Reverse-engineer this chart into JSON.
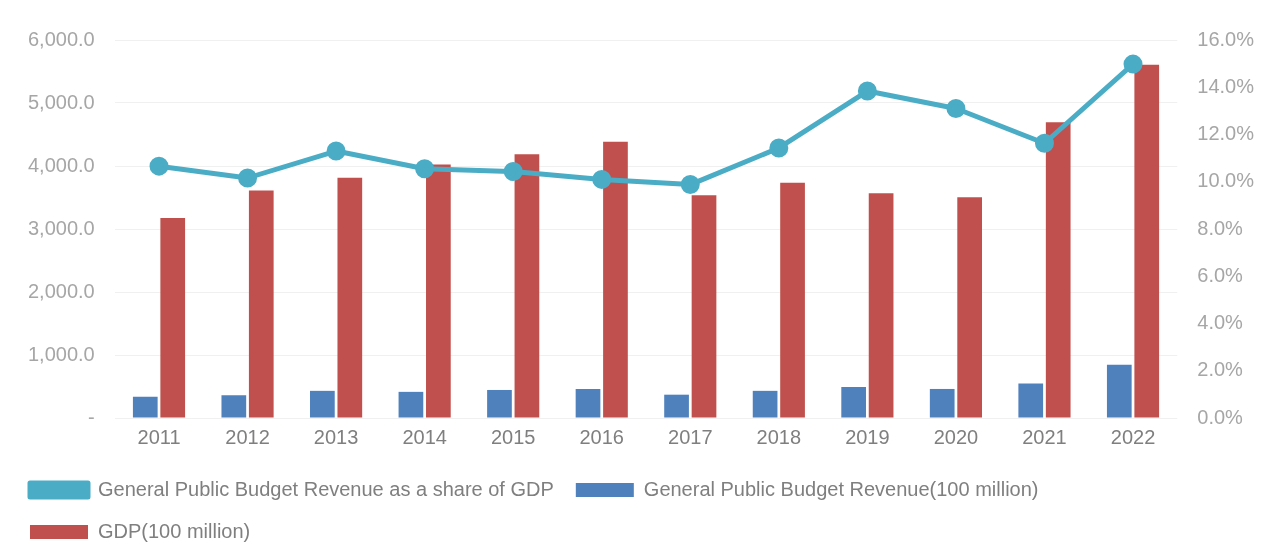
{
  "chart_data": {
    "type": "bar",
    "categories": [
      "2011",
      "2012",
      "2013",
      "2014",
      "2015",
      "2016",
      "2017",
      "2018",
      "2019",
      "2020",
      "2021",
      "2022"
    ],
    "series": [
      {
        "name": "General Public Budget Revenue(100 million)",
        "color": "#4f81bd",
        "values": [
          338,
          360,
          431,
          415,
          445,
          460,
          370,
          431,
          492,
          461,
          548,
          846
        ]
      },
      {
        "name": "GDP(100 million)",
        "color": "#c0504d",
        "values": [
          3173,
          3613,
          3812,
          4022,
          4187,
          4384,
          3535,
          3735,
          3569,
          3503,
          4693,
          5608
        ]
      },
      {
        "name": "General Public Budget Revenue as a share of GDP",
        "type": "line",
        "axis": "y2",
        "color": "#4bacc6",
        "values": [
          10.66,
          10.16,
          11.3,
          10.55,
          10.43,
          10.1,
          9.88,
          11.43,
          13.84,
          13.1,
          11.63,
          14.98
        ]
      }
    ],
    "ylim": [
      0,
      6000
    ],
    "yticks": [
      {
        "value": 0,
        "label": "-"
      },
      {
        "value": 1000,
        "label": "1,000.0"
      },
      {
        "value": 2000,
        "label": "2,000.0"
      },
      {
        "value": 3000,
        "label": "3,000.0"
      },
      {
        "value": 4000,
        "label": "4,000.0"
      },
      {
        "value": 5000,
        "label": "5,000.0"
      },
      {
        "value": 6000,
        "label": "6,000.0"
      }
    ],
    "y2lim": [
      0,
      16
    ],
    "y2ticks": [
      {
        "value": 0,
        "label": "0.0%"
      },
      {
        "value": 2,
        "label": "2.0%"
      },
      {
        "value": 4,
        "label": "4.0%"
      },
      {
        "value": 6,
        "label": "6.0%"
      },
      {
        "value": 8,
        "label": "8.0%"
      },
      {
        "value": 10,
        "label": "10.0%"
      },
      {
        "value": 12,
        "label": "12.0%"
      },
      {
        "value": 14,
        "label": "14.0%"
      },
      {
        "value": 16,
        "label": "16.0%"
      }
    ],
    "grid": "y",
    "legend": "bottom",
    "marker": "circle"
  }
}
